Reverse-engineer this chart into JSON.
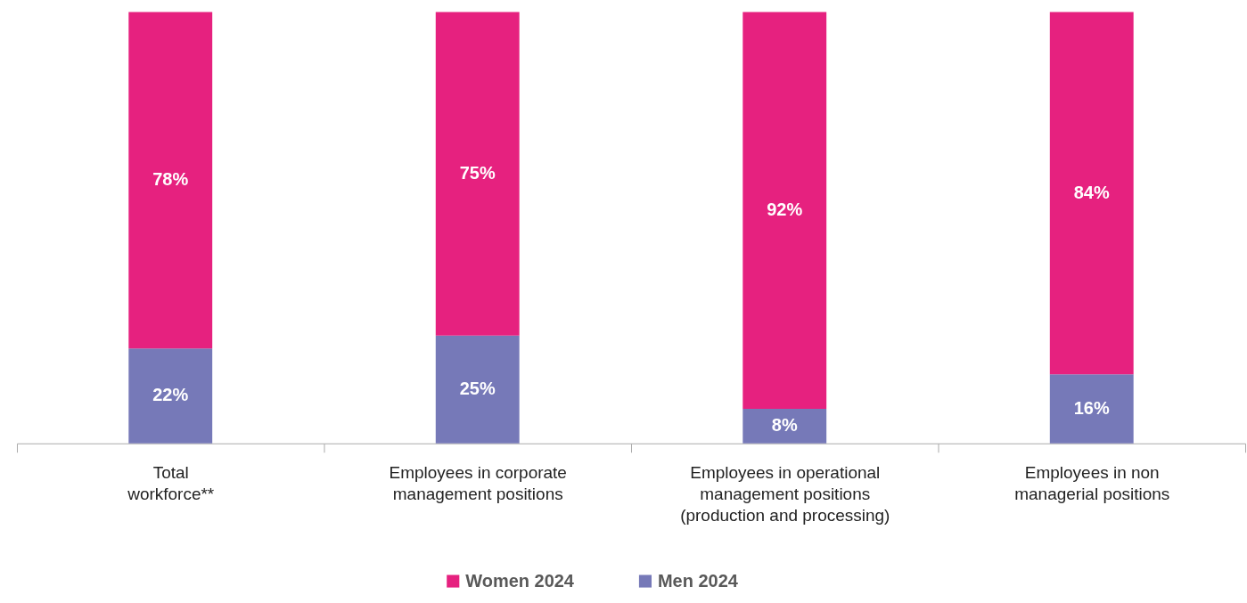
{
  "chart_data": {
    "type": "bar",
    "stacked": true,
    "categories": [
      "Total workforce**",
      "Employees in corporate management positions",
      "Employees in operational management positions (production and processing)",
      "Employees in non managerial positions"
    ],
    "series": [
      {
        "name": "Men 2024",
        "color": "#7679b8",
        "values": [
          22,
          25,
          8,
          16
        ],
        "value_labels": [
          "22%",
          "25%",
          "8%",
          "16%"
        ]
      },
      {
        "name": "Women 2024",
        "color": "#e6217f",
        "values": [
          78,
          75,
          92,
          84
        ],
        "value_labels": [
          "78%",
          "75%",
          "92%",
          "84%"
        ]
      }
    ],
    "tick_labels": "x",
    "legend": "bottom",
    "grid": false
  }
}
